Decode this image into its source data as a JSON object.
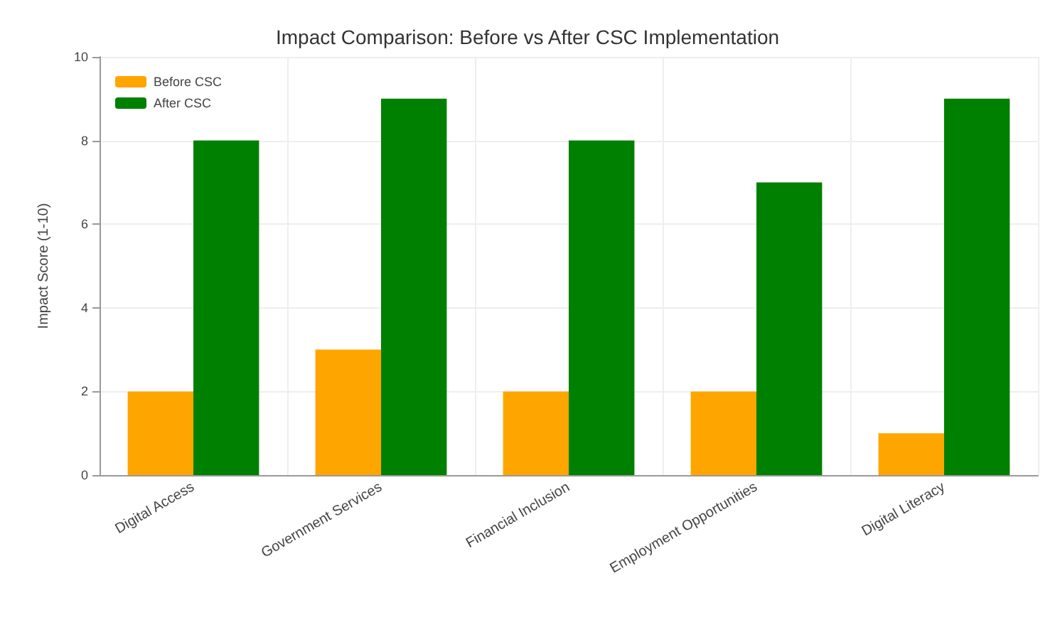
{
  "chart_data": {
    "type": "bar",
    "title": "Impact Comparison: Before vs After CSC Implementation",
    "ylabel": "Impact Score (1-10)",
    "categories": [
      "Digital Access",
      "Government Services",
      "Financial Inclusion",
      "Employment Opportunities",
      "Digital Literacy"
    ],
    "series": [
      {
        "name": "Before CSC",
        "color": "#ffa500",
        "values": [
          2,
          3,
          2,
          2,
          1
        ]
      },
      {
        "name": "After CSC",
        "color": "#008000",
        "values": [
          8,
          9,
          8,
          7,
          9
        ]
      }
    ],
    "ylim": [
      0,
      10
    ],
    "yticks": [
      0,
      2,
      4,
      6,
      8,
      10
    ],
    "grid": true,
    "legend": "top left"
  }
}
